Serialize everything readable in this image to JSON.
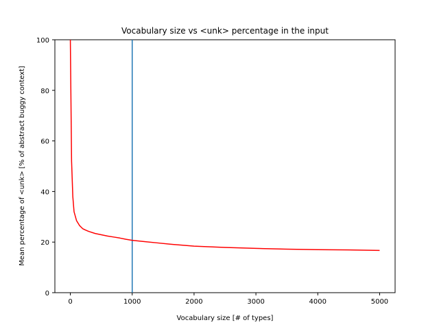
{
  "chart_data": {
    "type": "line",
    "title": "Vocabulary size vs <unk> percentage in the input",
    "xlabel": "Vocabulary size [# of types]",
    "ylabel": "Mean percentage of <unk> [% of abstract buggy context]",
    "xlim": [
      -250,
      5250
    ],
    "ylim": [
      0,
      100
    ],
    "xticks": [
      0,
      1000,
      2000,
      3000,
      4000,
      5000
    ],
    "yticks": [
      0,
      20,
      40,
      60,
      80,
      100
    ],
    "grid": false,
    "series": [
      {
        "color": "#ff0000",
        "x": [
          0,
          20,
          40,
          60,
          100,
          150,
          200,
          250,
          300,
          400,
          500,
          600,
          700,
          800,
          900,
          1000,
          1200,
          1400,
          1600,
          1800,
          2000,
          2500,
          3000,
          3500,
          4000,
          4500,
          5000
        ],
        "y": [
          100,
          52,
          38,
          32,
          28.5,
          26.5,
          25.3,
          24.7,
          24.2,
          23.4,
          22.9,
          22.4,
          22.0,
          21.6,
          21.1,
          20.7,
          20.2,
          19.7,
          19.2,
          18.8,
          18.4,
          17.9,
          17.5,
          17.2,
          17.0,
          16.9,
          16.7
        ]
      }
    ],
    "vlines": [
      {
        "x": 1000,
        "color": "#1f77b4"
      }
    ]
  }
}
